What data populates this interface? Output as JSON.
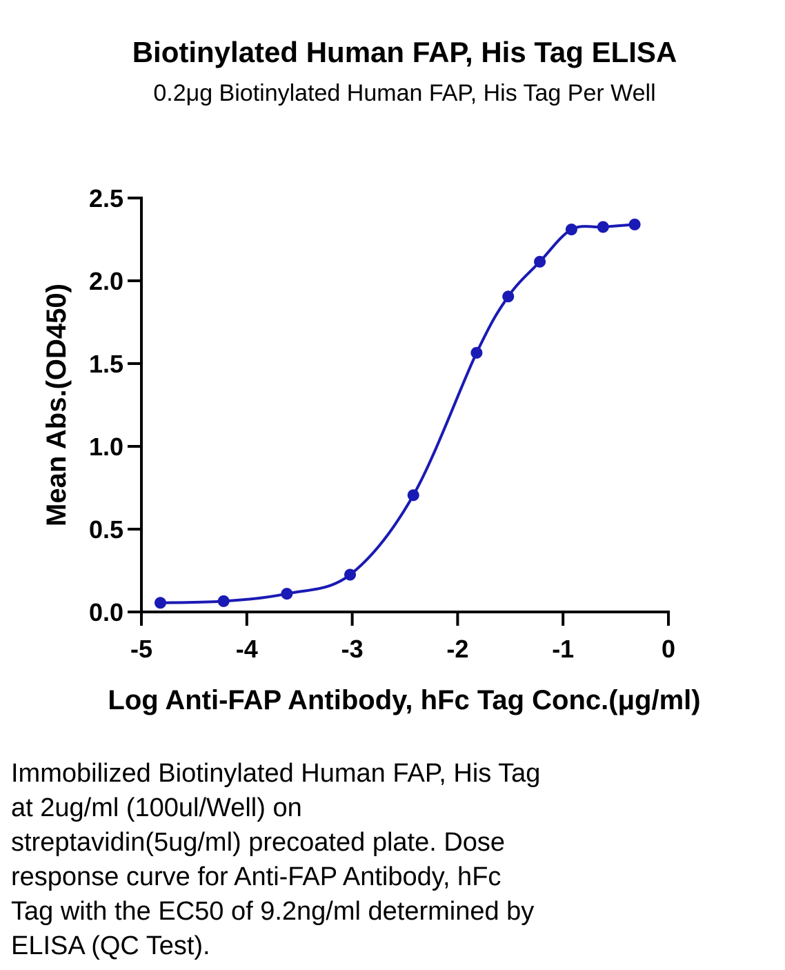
{
  "header": {
    "title": "Biotinylated Human FAP, His Tag ELISA",
    "subtitle": "0.2μg Biotinylated Human FAP, His Tag Per Well"
  },
  "chart_data": {
    "type": "scatter",
    "xlabel": "Log Anti-FAP Antibody, hFc Tag Conc.(μg/ml)",
    "ylabel": "Mean Abs.(OD450)",
    "xlim": [
      -5,
      0
    ],
    "ylim": [
      0,
      2.5
    ],
    "x_ticks": [
      "-5",
      "-4",
      "-3",
      "-2",
      "-1",
      "0"
    ],
    "y_ticks": [
      "0.0",
      "0.5",
      "1.0",
      "1.5",
      "2.0",
      "2.5"
    ],
    "grid": false,
    "legend": "none",
    "series": [
      {
        "color": "#1a1ab4",
        "fit": "sigmoidal 4PL",
        "x": [
          -4.82,
          -4.22,
          -3.62,
          -3.02,
          -2.42,
          -1.82,
          -1.52,
          -1.22,
          -0.92,
          -0.62,
          -0.32
        ],
        "y": [
          0.055,
          0.065,
          0.11,
          0.225,
          0.705,
          1.565,
          1.905,
          2.115,
          2.31,
          2.325,
          2.34
        ]
      }
    ]
  },
  "caption": {
    "lines": [
      "Immobilized Biotinylated Human FAP, His Tag",
      "at 2ug/ml (100ul/Well) on",
      "streptavidin(5ug/ml) precoated plate. Dose",
      "response curve for Anti-FAP Antibody, hFc",
      "Tag with the EC50 of 9.2ng/ml determined by",
      "ELISA (QC Test)."
    ]
  }
}
